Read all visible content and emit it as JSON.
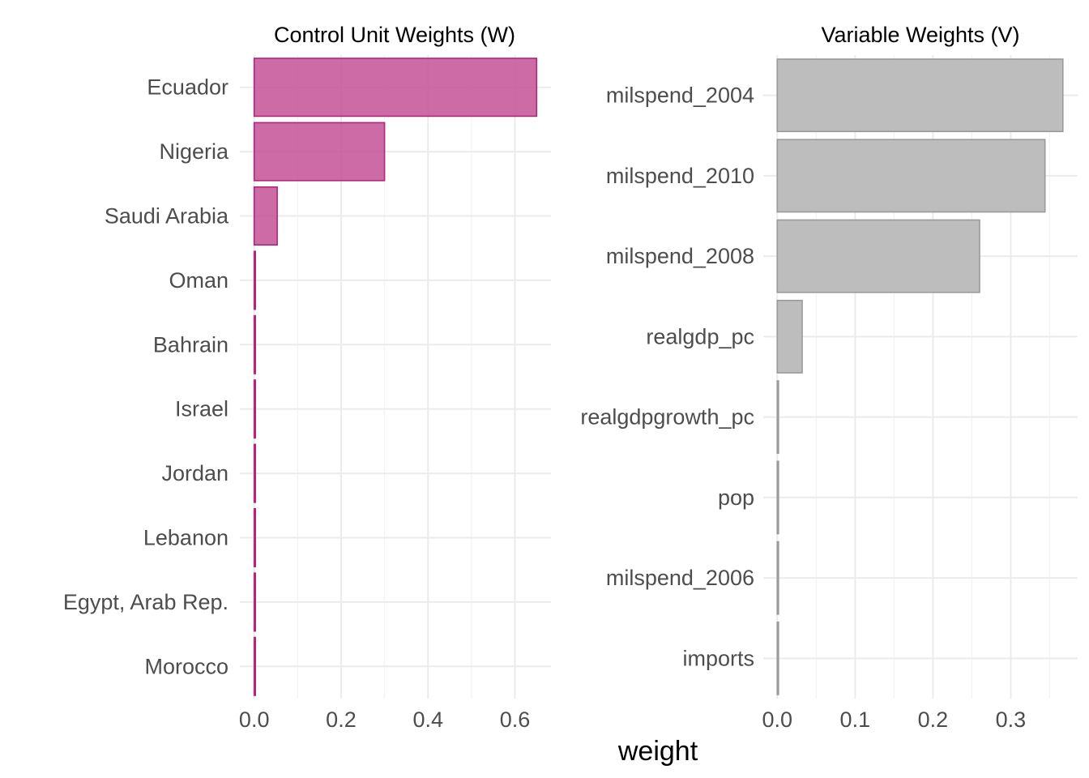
{
  "chart_data": [
    {
      "type": "bar",
      "orientation": "horizontal",
      "title": "Control Unit Weights (W)",
      "xlabel": "",
      "ylabel": "",
      "categories": [
        "Ecuador",
        "Nigeria",
        "Saudi Arabia",
        "Oman",
        "Bahrain",
        "Israel",
        "Jordan",
        "Lebanon",
        "Egypt, Arab Rep.",
        "Morocco"
      ],
      "values": [
        0.65,
        0.3,
        0.053,
        0.001,
        0.001,
        0.001,
        0.001,
        0.001,
        0.001,
        0.001
      ],
      "xlim": [
        -0.033,
        0.683
      ],
      "xticks": [
        0.0,
        0.2,
        0.4,
        0.6
      ],
      "xtick_labels": [
        "0.0",
        "0.2",
        "0.4",
        "0.6"
      ],
      "grid": true,
      "fill_color": "#c45196",
      "edge_color": "#b5267a",
      "fill_opacity": 0.85
    },
    {
      "type": "bar",
      "orientation": "horizontal",
      "title": "Variable Weights (V)",
      "xlabel": "",
      "ylabel": "",
      "categories": [
        "milspend_2004",
        "milspend_2010",
        "milspend_2008",
        "realgdp_pc",
        "realgdpgrowth_pc",
        "pop",
        "milspend_2006",
        "imports"
      ],
      "values": [
        0.367,
        0.344,
        0.26,
        0.032,
        0.001,
        0.001,
        0.001,
        0.001
      ],
      "xlim": [
        -0.018,
        0.386
      ],
      "xticks": [
        0.0,
        0.1,
        0.2,
        0.3
      ],
      "xtick_labels": [
        "0.0",
        "0.1",
        "0.2",
        "0.3"
      ],
      "grid": true,
      "fill_color": "#bdbdbd",
      "edge_color": "#9a9a9a",
      "fill_opacity": 1
    }
  ],
  "shared_xlabel": "weight"
}
